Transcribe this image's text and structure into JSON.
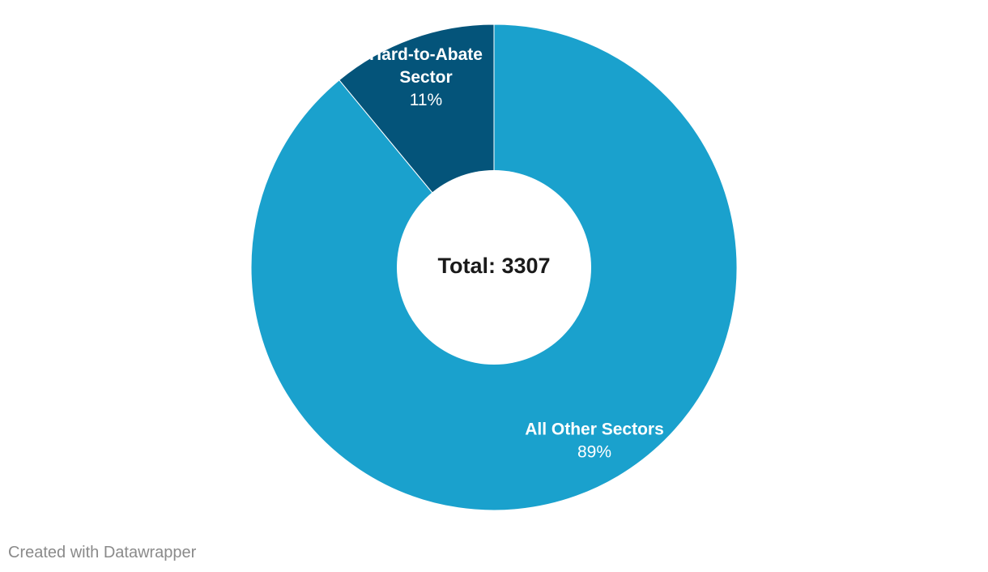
{
  "chart_data": {
    "type": "pie",
    "donut": true,
    "categories": [
      "Hard-to-Abate Sector",
      "All Other Sectors"
    ],
    "values": [
      11,
      89
    ],
    "percent_labels": [
      "11%",
      "89%"
    ],
    "colors": [
      "#04547a",
      "#1aa1cd"
    ],
    "center_text": "Total: 3307",
    "label_lines": [
      [
        "Hard-to-Abate",
        "Sector"
      ],
      [
        "All Other Sectors"
      ]
    ]
  },
  "footer": {
    "credit": "Created with Datawrapper"
  }
}
